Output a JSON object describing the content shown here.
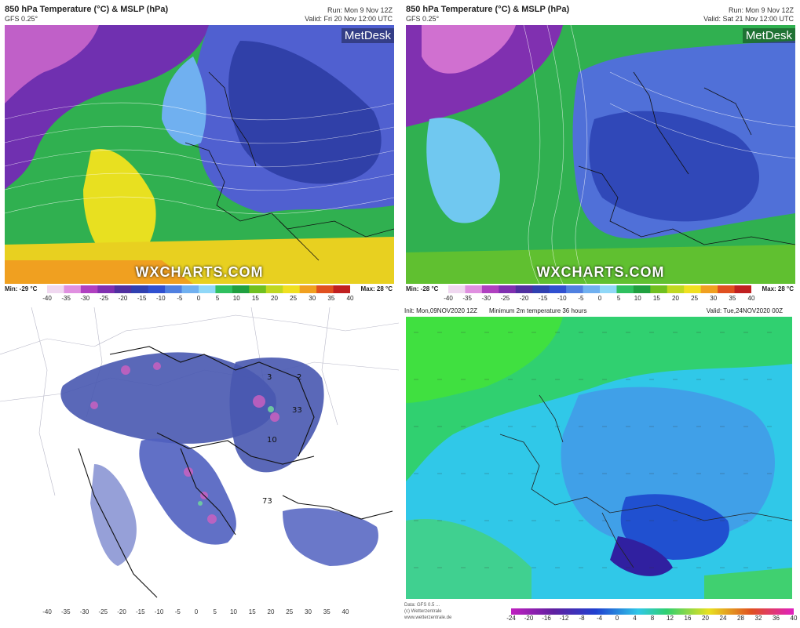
{
  "panels": [
    {
      "title": "850 hPa Temperature (°C) & MSLP (hPa)",
      "model": "GFS 0.25°",
      "run": "Run: Mon 9 Nov 12Z",
      "valid": "Valid: Fri 20 Nov 12:00 UTC",
      "brand": "MetDesk",
      "watermark": "WXCHARTS.COM",
      "min_label": "Min: -29 °C",
      "max_label": "Max: 28 °C"
    },
    {
      "title": "850 hPa Temperature (°C) & MSLP (hPa)",
      "model": "GFS 0.25°",
      "run": "Run: Mon 9 Nov 12Z",
      "valid": "Valid: Sat 21 Nov 12:00 UTC",
      "brand": "MetDesk",
      "watermark": "WXCHARTS.COM",
      "min_label": "Min: -28 °C",
      "max_label": "Max: 28 °C"
    }
  ],
  "colorbar_ticks": [
    "-40",
    "-35",
    "-30",
    "-25",
    "-20",
    "-15",
    "-10",
    "-5",
    "0",
    "5",
    "10",
    "15",
    "20",
    "25",
    "30",
    "35",
    "40"
  ],
  "colorbar_colors": [
    "#f0d8f0",
    "#e090e0",
    "#b040c0",
    "#8030b0",
    "#5030a0",
    "#3040b0",
    "#3050d0",
    "#5080e0",
    "#70b0f0",
    "#90d8f8",
    "#30c060",
    "#20a040",
    "#70c020",
    "#c0d820",
    "#f0e020",
    "#f0a020",
    "#e05020",
    "#c02020"
  ],
  "panel3": {
    "lon_ticks": [
      "-40",
      "-35",
      "-30",
      "-25",
      "-20",
      "-15",
      "-10",
      "-5",
      "0",
      "5",
      "10",
      "15",
      "20",
      "25",
      "30",
      "35",
      "40"
    ],
    "map_labels": [
      "3",
      "2",
      "33",
      "10",
      "73"
    ]
  },
  "panel4": {
    "init": "Init: Mon,09NOV2020 12Z",
    "mid": "Minimum 2m temperature 36 hours",
    "valid": "Valid: Tue,24NOV2020 00Z",
    "footer_lines": [
      "Data: GFS 0.5 ...",
      "(c) Wetterzentrale",
      "www.wetterzentrale.de"
    ],
    "colorbar_ticks": [
      "-24",
      "-20",
      "-16",
      "-12",
      "-8",
      "-4",
      "0",
      "4",
      "8",
      "12",
      "16",
      "20",
      "24",
      "28",
      "32",
      "36",
      "40"
    ]
  }
}
